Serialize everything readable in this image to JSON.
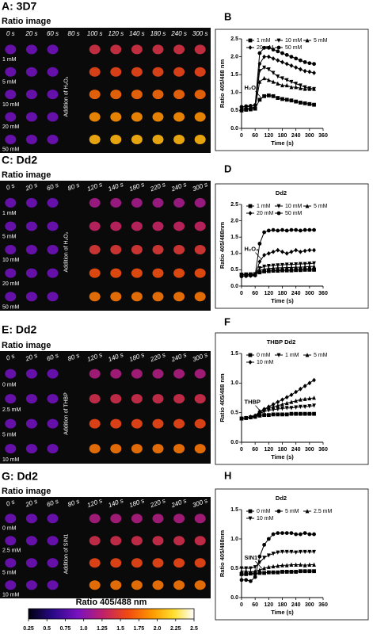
{
  "panels": [
    {
      "label": "A: 3D7",
      "subtitle": "Ratio image",
      "times": [
        "0 s",
        "20 s",
        "60 s",
        "80 s",
        "100 s",
        "120 s",
        "140 s",
        "180 s",
        "240 s",
        "300 s"
      ],
      "rows": [
        "1 mM",
        "5 mM",
        "10 mM",
        "20 mM",
        "50 mM"
      ],
      "addition": "Addition of H₂O₂"
    },
    {
      "label": "C: Dd2",
      "subtitle": "Ratio image",
      "times": [
        "0 s",
        "20 s",
        "60 s",
        "80 s",
        "120 s",
        "140 s",
        "180 s",
        "220 s",
        "240 s",
        "300 s"
      ],
      "rows": [
        "1 mM",
        "5 mM",
        "10 mM",
        "20 mM",
        "50 mM"
      ],
      "addition": "Addition of H₂O₂"
    },
    {
      "label": "E: Dd2",
      "subtitle": "Ratio image",
      "times": [
        "0 s",
        "20 s",
        "60 s",
        "80 s",
        "120 s",
        "140 s",
        "180 s",
        "220 s",
        "240 s",
        "300 s"
      ],
      "rows": [
        "0 mM",
        "2.5 mM",
        "5 mM",
        "10 mM"
      ],
      "addition": "Addition of THBP"
    },
    {
      "label": "G: Dd2",
      "subtitle": "Ratio image",
      "times": [
        "0 s",
        "20 s",
        "60 s",
        "80 s",
        "120 s",
        "140 s",
        "180 s",
        "220 s",
        "240 s",
        "300 s"
      ],
      "rows": [
        "0 mM",
        "2.5 mM",
        "5 mM",
        "10 mM"
      ],
      "addition": "Addition of SIN1"
    }
  ],
  "chart_data": [
    {
      "type": "line",
      "panel_label": "B",
      "xlabel": "Time (s)",
      "ylabel": "Ratio 405/488 nm",
      "annotation": "H₂O₂",
      "x": [
        0,
        20,
        40,
        60,
        80,
        100,
        120,
        140,
        160,
        180,
        200,
        220,
        240,
        260,
        280,
        300,
        320
      ],
      "xlim": [
        0,
        360
      ],
      "xticks": [
        0,
        60,
        120,
        180,
        240,
        300,
        360
      ],
      "ylim": [
        0,
        2.5
      ],
      "yticks": [
        {
          "value": 0,
          "label": "0.0"
        },
        0.5,
        {
          "value": 1,
          "label": "1.0"
        },
        1.5,
        {
          "value": 2,
          "label": "2.0"
        },
        2.5
      ],
      "series": [
        {
          "name": "1 mM",
          "color": "#000",
          "marker": "square",
          "values": [
            0.5,
            0.52,
            0.53,
            0.55,
            0.8,
            0.9,
            0.92,
            0.9,
            0.85,
            0.82,
            0.8,
            0.78,
            0.75,
            0.72,
            0.7,
            0.68,
            0.66
          ]
        },
        {
          "name": "10 mM",
          "color": "#000",
          "marker": "triangle-down",
          "values": [
            0.55,
            0.56,
            0.57,
            0.6,
            1.6,
            1.7,
            1.65,
            1.55,
            1.45,
            1.4,
            1.35,
            1.3,
            1.25,
            1.2,
            1.15,
            1.12,
            1.1
          ]
        },
        {
          "name": "5 mM",
          "color": "#000",
          "marker": "triangle-up",
          "values": [
            0.55,
            0.56,
            0.57,
            0.58,
            1.3,
            1.4,
            1.35,
            1.3,
            1.25,
            1.2,
            1.2,
            1.15,
            1.15,
            1.12,
            1.1,
            1.1,
            1.1
          ]
        },
        {
          "name": "20 mM",
          "color": "#000",
          "marker": "diamond",
          "values": [
            0.6,
            0.6,
            0.62,
            0.65,
            1.8,
            2.0,
            2.0,
            1.95,
            1.9,
            1.85,
            1.8,
            1.75,
            1.7,
            1.65,
            1.6,
            1.58,
            1.55
          ]
        },
        {
          "name": "50 mM",
          "color": "#000",
          "marker": "circle",
          "values": [
            0.6,
            0.62,
            0.63,
            0.65,
            2.1,
            2.25,
            2.25,
            2.2,
            2.15,
            2.1,
            2.05,
            2.0,
            1.95,
            1.9,
            1.85,
            1.82,
            1.8
          ]
        }
      ]
    },
    {
      "type": "line",
      "panel_label": "D",
      "title": "Dd2",
      "xlabel": "Time (s)",
      "ylabel": "Ratio 405/488nm",
      "annotation": "H₂O₂",
      "x": [
        0,
        20,
        40,
        60,
        80,
        100,
        120,
        140,
        160,
        180,
        200,
        220,
        240,
        260,
        280,
        300,
        320
      ],
      "xlim": [
        0,
        360
      ],
      "xticks": [
        0,
        60,
        120,
        180,
        240,
        300,
        360
      ],
      "ylim": [
        0,
        2.5
      ],
      "yticks": [
        {
          "value": 0,
          "label": "0.0"
        },
        0.5,
        {
          "value": 1,
          "label": "1.0"
        },
        1.5,
        {
          "value": 2,
          "label": "2.0"
        },
        2.5
      ],
      "series": [
        {
          "name": "1 mM",
          "color": "#000",
          "marker": "square",
          "values": [
            0.35,
            0.35,
            0.36,
            0.36,
            0.42,
            0.45,
            0.46,
            0.47,
            0.47,
            0.48,
            0.48,
            0.48,
            0.49,
            0.49,
            0.5,
            0.5,
            0.5
          ]
        },
        {
          "name": "10 mM",
          "color": "#000",
          "marker": "triangle-down",
          "values": [
            0.35,
            0.36,
            0.36,
            0.37,
            0.55,
            0.6,
            0.62,
            0.63,
            0.64,
            0.65,
            0.66,
            0.66,
            0.67,
            0.68,
            0.68,
            0.69,
            0.7
          ]
        },
        {
          "name": "5 mM",
          "color": "#000",
          "marker": "triangle-up",
          "values": [
            0.34,
            0.35,
            0.35,
            0.36,
            0.48,
            0.52,
            0.54,
            0.55,
            0.56,
            0.56,
            0.57,
            0.57,
            0.58,
            0.58,
            0.59,
            0.6,
            0.6
          ]
        },
        {
          "name": "20 mM",
          "color": "#000",
          "marker": "diamond",
          "values": [
            0.3,
            0.31,
            0.32,
            0.33,
            0.75,
            0.95,
            1.0,
            1.05,
            1.1,
            1.05,
            1.0,
            1.05,
            1.1,
            1.05,
            1.08,
            1.1,
            1.1
          ]
        },
        {
          "name": "50 mM",
          "color": "#000",
          "marker": "circle",
          "values": [
            0.3,
            0.31,
            0.32,
            0.33,
            1.3,
            1.65,
            1.7,
            1.72,
            1.7,
            1.72,
            1.7,
            1.72,
            1.72,
            1.7,
            1.72,
            1.72,
            1.72
          ]
        }
      ]
    },
    {
      "type": "line",
      "panel_label": "F",
      "title": "THBP Dd2",
      "xlabel": "Time (s)",
      "ylabel": "Ratio 405/488 nm",
      "annotation": "THBP",
      "x": [
        0,
        20,
        40,
        60,
        80,
        100,
        120,
        140,
        160,
        180,
        200,
        220,
        240,
        260,
        280,
        300,
        320
      ],
      "xlim": [
        0,
        360
      ],
      "xticks": [
        0,
        60,
        120,
        180,
        240,
        300,
        360
      ],
      "ylim": [
        0,
        1.5
      ],
      "yticks": [
        {
          "value": 0,
          "label": "0.0"
        },
        0.5,
        {
          "value": 1,
          "label": "1.0"
        },
        1.5
      ],
      "series": [
        {
          "name": "0 mM",
          "color": "#000",
          "marker": "square",
          "values": [
            0.4,
            0.41,
            0.42,
            0.43,
            0.45,
            0.46,
            0.46,
            0.47,
            0.47,
            0.47,
            0.47,
            0.48,
            0.48,
            0.48,
            0.48,
            0.48,
            0.48
          ]
        },
        {
          "name": "1 mM",
          "color": "#000",
          "marker": "triangle-down",
          "values": [
            0.4,
            0.41,
            0.42,
            0.43,
            0.48,
            0.52,
            0.54,
            0.55,
            0.56,
            0.57,
            0.58,
            0.58,
            0.59,
            0.6,
            0.6,
            0.61,
            0.62
          ]
        },
        {
          "name": "5 mM",
          "color": "#000",
          "marker": "triangle-up",
          "values": [
            0.4,
            0.41,
            0.42,
            0.44,
            0.5,
            0.55,
            0.58,
            0.6,
            0.62,
            0.64,
            0.66,
            0.68,
            0.7,
            0.72,
            0.73,
            0.74,
            0.75
          ]
        },
        {
          "name": "10 mM",
          "color": "#000",
          "marker": "diamond",
          "values": [
            0.4,
            0.41,
            0.43,
            0.45,
            0.52,
            0.56,
            0.6,
            0.64,
            0.68,
            0.72,
            0.76,
            0.8,
            0.85,
            0.9,
            0.95,
            1.0,
            1.05
          ]
        }
      ]
    },
    {
      "type": "line",
      "panel_label": "H",
      "title": "Dd2",
      "xlabel": "Time (s)",
      "ylabel": "Ratio 405/488nm",
      "annotation": "SIN1",
      "x": [
        0,
        20,
        40,
        60,
        80,
        100,
        120,
        140,
        160,
        180,
        200,
        220,
        240,
        260,
        280,
        300,
        320
      ],
      "xlim": [
        0,
        360
      ],
      "xticks": [
        0,
        60,
        120,
        180,
        240,
        300,
        360
      ],
      "ylim": [
        0,
        1.5
      ],
      "yticks": [
        {
          "value": 0,
          "label": "0.0"
        },
        0.5,
        {
          "value": 1,
          "label": "1.0"
        },
        1.5
      ],
      "series": [
        {
          "name": "0 mM",
          "color": "#000",
          "marker": "square",
          "values": [
            0.4,
            0.4,
            0.41,
            0.41,
            0.42,
            0.42,
            0.43,
            0.43,
            0.43,
            0.44,
            0.44,
            0.44,
            0.44,
            0.45,
            0.45,
            0.45,
            0.45
          ]
        },
        {
          "name": "5 mM",
          "color": "#000",
          "marker": "circle",
          "values": [
            0.3,
            0.3,
            0.28,
            0.35,
            0.7,
            0.9,
            1.0,
            1.08,
            1.1,
            1.1,
            1.1,
            1.1,
            1.08,
            1.08,
            1.1,
            1.08,
            1.08
          ]
        },
        {
          "name": "2.5 mM",
          "color": "#000",
          "marker": "triangle-up",
          "values": [
            0.45,
            0.45,
            0.44,
            0.45,
            0.47,
            0.5,
            0.52,
            0.53,
            0.54,
            0.55,
            0.55,
            0.56,
            0.56,
            0.56,
            0.55,
            0.56,
            0.56
          ]
        },
        {
          "name": "10 mM",
          "color": "#000",
          "marker": "triangle-down",
          "values": [
            0.5,
            0.5,
            0.5,
            0.52,
            0.6,
            0.68,
            0.72,
            0.75,
            0.77,
            0.78,
            0.78,
            0.78,
            0.77,
            0.78,
            0.78,
            0.78,
            0.78
          ]
        }
      ]
    }
  ],
  "colorbar": {
    "label": "Ratio 405/488 nm",
    "range": [
      0.25,
      2.5
    ],
    "ticks": [
      0.25,
      0.5,
      0.75,
      {
        "value": 1,
        "label": "1.0"
      },
      1.25,
      1.5,
      1.75,
      {
        "value": 2,
        "label": "2.0"
      },
      2.25,
      2.5
    ]
  }
}
